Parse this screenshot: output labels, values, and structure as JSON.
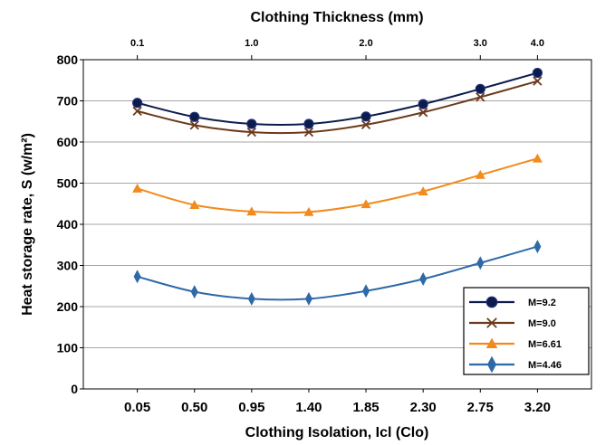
{
  "chart_data": {
    "type": "line",
    "xlabel": "Clothing Isolation, Icl (Clo)",
    "x2label": "Clothing Thickness (mm)",
    "ylabel": "Heat storage rate, S (w/m²)",
    "categories": [
      "0.05",
      "0.50",
      "0.95",
      "1.40",
      "1.85",
      "2.30",
      "2.75",
      "3.20"
    ],
    "top_ticks": [
      {
        "label": "0.1",
        "at": 0.05
      },
      {
        "label": "1.0",
        "at": 0.95
      },
      {
        "label": "2.0",
        "at": 1.85
      },
      {
        "label": "3.0",
        "at": 2.75
      },
      {
        "label": "4.0",
        "at": 3.2
      }
    ],
    "x": [
      0.05,
      0.5,
      0.95,
      1.4,
      1.85,
      2.3,
      2.75,
      3.2
    ],
    "ylim": [
      0,
      800
    ],
    "yticks": [
      0,
      100,
      200,
      300,
      400,
      500,
      600,
      700,
      800
    ],
    "grid": "horizontal",
    "legend_position": "bottom-right",
    "series": [
      {
        "name": "M=9.2",
        "color": "#0d1b4c",
        "marker": "circle",
        "values": [
          695,
          661,
          644,
          644,
          662,
          692,
          729,
          768
        ]
      },
      {
        "name": "M=9.0",
        "color": "#6b3a1a",
        "marker": "x",
        "values": [
          675,
          641,
          624,
          624,
          642,
          672,
          709,
          748
        ]
      },
      {
        "name": "M=6.61",
        "color": "#f28a1e",
        "marker": "triangle",
        "values": [
          487,
          447,
          431,
          430,
          449,
          480,
          520,
          560
        ]
      },
      {
        "name": "M=4.46",
        "color": "#2e6aa8",
        "marker": "diamond",
        "values": [
          273,
          236,
          219,
          219,
          238,
          267,
          306,
          346
        ]
      }
    ]
  }
}
